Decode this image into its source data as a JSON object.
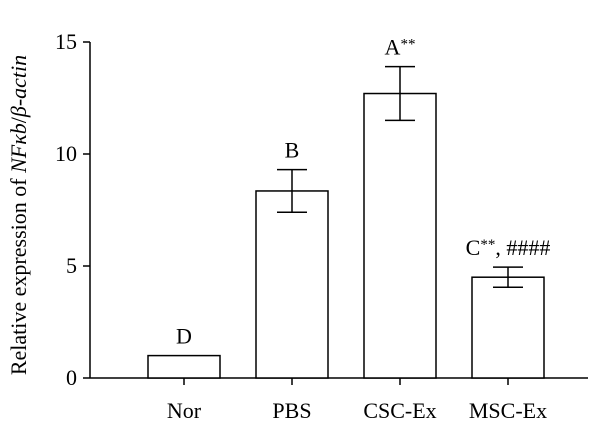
{
  "chart_data": {
    "type": "bar",
    "categories": [
      "Nor",
      "PBS",
      "CSC-Ex",
      "MSC-Ex"
    ],
    "values": [
      1.0,
      8.35,
      12.7,
      4.5
    ],
    "errors": [
      0,
      0.95,
      1.2,
      0.45
    ],
    "annotations": [
      {
        "main": "D",
        "sup": "",
        "tail": ""
      },
      {
        "main": "B",
        "sup": "",
        "tail": ""
      },
      {
        "main": "A",
        "sup": "**",
        "tail": ""
      },
      {
        "main": "C",
        "sup": "**",
        "tail": ", ####"
      }
    ],
    "ylabel": "Relative expression of NFκb/β-actin",
    "ylabel_parts": {
      "prefix": "Relative expression of ",
      "gene": "NFκb",
      "slash": "/",
      "ref": "β-actin"
    },
    "yticks": [
      "0",
      "5",
      "10",
      "15"
    ],
    "yticks_values": [
      0,
      5,
      10,
      15
    ],
    "ylim": [
      0,
      15
    ],
    "grid": false,
    "colors": {
      "bar_fill": "#ffffff",
      "bar_stroke": "#000000"
    }
  }
}
